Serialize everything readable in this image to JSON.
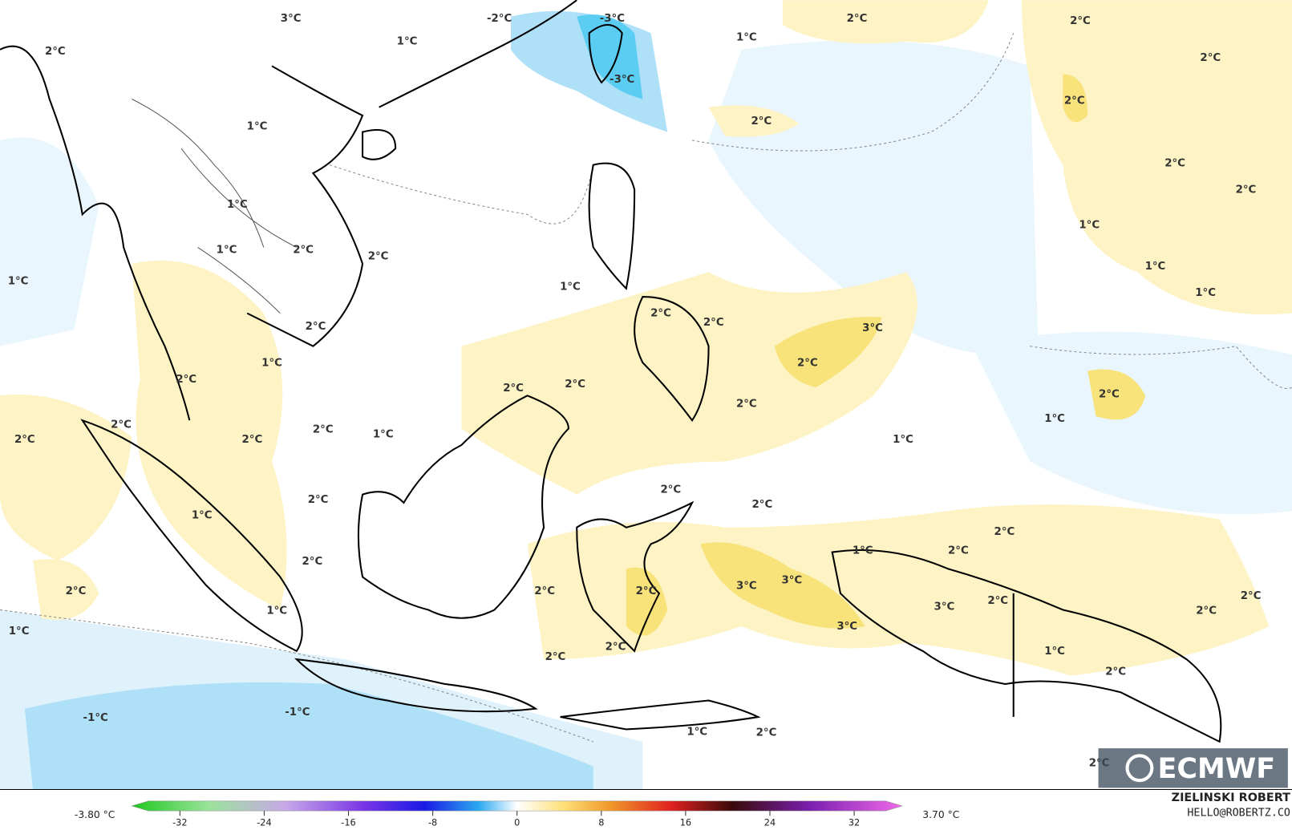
{
  "map_labels": [
    "3°C",
    "-2°C",
    "1°C",
    "-3°C",
    "-3°C",
    "2°C",
    "1°C",
    "2°C",
    "2°C",
    "2°C",
    "2°C",
    "1°C",
    "2°C",
    "2°C",
    "2°C",
    "1°C",
    "1°C",
    "1°C",
    "2°C",
    "2°C",
    "1°C",
    "1°C",
    "1°C",
    "1°C",
    "2°C",
    "2°C",
    "2°C",
    "3°C",
    "2°C",
    "1°C",
    "2°C",
    "2°C",
    "2°C",
    "2°C",
    "2°C",
    "1°C",
    "2°C",
    "2°C",
    "1°C",
    "2°C",
    "2°C",
    "1°C",
    "2°C",
    "2°C",
    "2°C",
    "1°C",
    "2°C",
    "1°C",
    "2°C",
    "2°C",
    "3°C",
    "3°C",
    "2°C",
    "2°C",
    "2°C",
    "2°C",
    "2°C",
    "3°C",
    "2°C",
    "1°C",
    "3°C",
    "1°C",
    "2°C",
    "2°C",
    "1°C",
    "2°C",
    "-1°C",
    "-1°C",
    "1°C",
    "2°C",
    "2°C"
  ],
  "colorbar": {
    "min_label": "-3.80 °C",
    "max_label": "3.70 °C",
    "range": [
      -35,
      35
    ],
    "ticks": [
      -32,
      -24,
      -16,
      -8,
      0,
      8,
      16,
      24,
      32
    ]
  },
  "credit": {
    "author": "ZIELINSKI ROBERT",
    "contact": "HELLO@ROBERTZ.CO"
  },
  "logo": "ECMWF"
}
